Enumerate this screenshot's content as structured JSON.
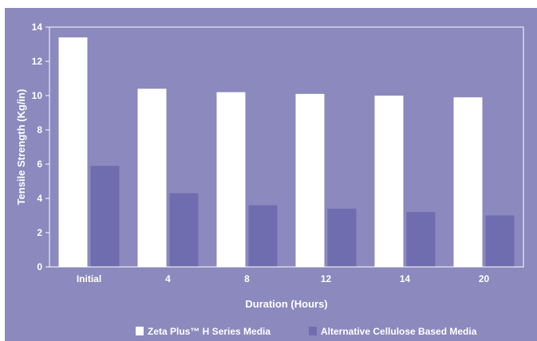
{
  "chart_data": {
    "type": "bar",
    "categories": [
      "Initial",
      "4",
      "8",
      "12",
      "14",
      "20"
    ],
    "series": [
      {
        "name": "Zeta Plus™ H Series Media",
        "values": [
          13.4,
          10.4,
          10.2,
          10.1,
          10.0,
          9.9
        ],
        "color": "#ffffff"
      },
      {
        "name": "Alternative Cellulose Based Media",
        "values": [
          5.9,
          4.3,
          3.6,
          3.4,
          3.2,
          3.0
        ],
        "color": "#6f6daf"
      }
    ],
    "title": "",
    "xlabel": "Duration (Hours)",
    "ylabel": "Tensile Strength (Kg/in)",
    "ylim": [
      0,
      14
    ],
    "yticks": [
      "0",
      "2",
      "4",
      "6",
      "8",
      "10",
      "12",
      "14"
    ],
    "grid": false,
    "legend_position": "bottom",
    "background": "#8b89bd",
    "axis_color": "#ffffff"
  }
}
